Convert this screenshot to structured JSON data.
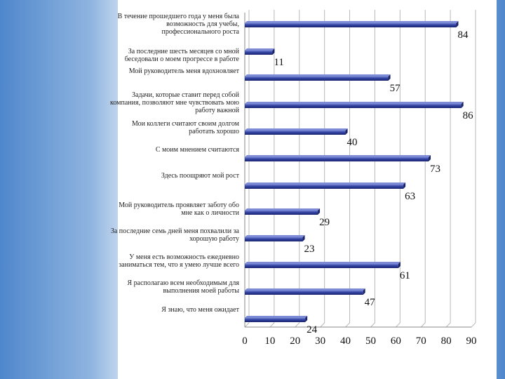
{
  "chart_data": {
    "type": "bar",
    "orientation": "horizontal",
    "categories": [
      "В течение прошедшего года у меня была возможность для учебы, профессионального роста",
      "За последние шесть месяцев со мной беседовали о моем прогрессе в работе",
      "Мой руководитель меня вдохновляет",
      "Задачи, которые ставит перед собой компания, позволяют мне чувствовать мою работу важной",
      "Мои коллеги считают своим долгом работать хорошо",
      "С моим мнением считаются",
      "Здесь поощряют мой рост",
      "Мой руководитель проявляет заботу обо мне как о личности",
      "За последние семь дней меня похвалили за хорошую работу",
      "У меня есть возможность ежедневно заниматься тем, что я умею лучше всего",
      "Я располагаю всем необходимым для выполнения моей работы",
      "Я знаю, что меня ожидает"
    ],
    "values": [
      84,
      11,
      57,
      86,
      40,
      73,
      63,
      29,
      23,
      61,
      47,
      24
    ],
    "xlim": [
      0,
      90
    ],
    "xticks": [
      "0",
      "10",
      "20",
      "30",
      "40",
      "50",
      "60",
      "70",
      "80",
      "90"
    ],
    "bar_color": "#2f3f9e",
    "grid": true,
    "legend": "none"
  }
}
